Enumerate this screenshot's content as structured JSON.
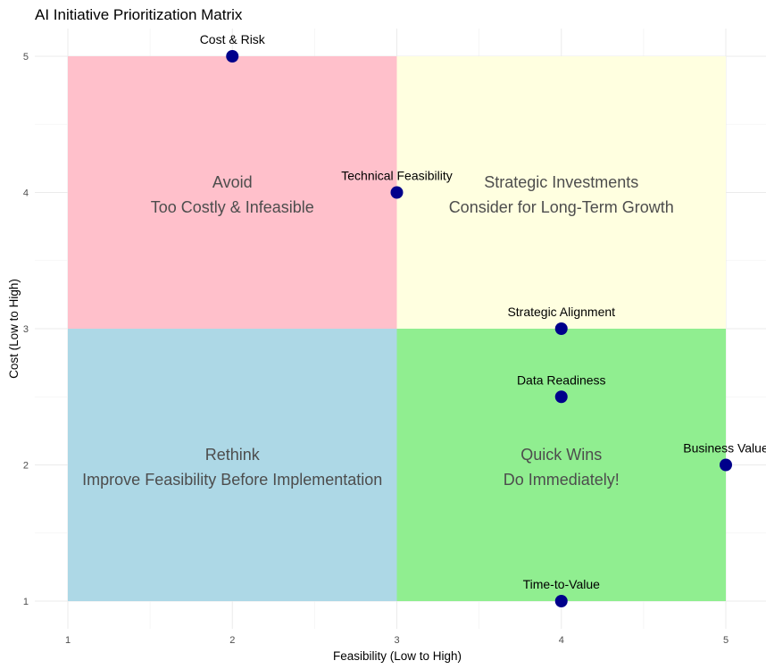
{
  "chart_data": {
    "type": "scatter",
    "title": "AI Initiative Prioritization Matrix",
    "xlabel": "Feasibility (Low to High)",
    "ylabel": "Cost (Low to High)",
    "xlim": [
      1,
      5
    ],
    "ylim": [
      1,
      5
    ],
    "x_ticks": [
      "1",
      "2",
      "3",
      "4",
      "5"
    ],
    "y_ticks": [
      "1",
      "2",
      "3",
      "4",
      "5"
    ],
    "grid": true,
    "point_color": "#00008b",
    "quadrants": [
      {
        "name": "Avoid",
        "line1": "Avoid",
        "line2": "Too Costly & Infeasible",
        "xmin": 1,
        "xmax": 3,
        "ymin": 3,
        "ymax": 5,
        "label_x": 2,
        "label_y": 3.9,
        "color": "#ffc0cb"
      },
      {
        "name": "Strategic Investments",
        "line1": "Strategic Investments",
        "line2": "Consider for Long-Term Growth",
        "xmin": 3,
        "xmax": 5,
        "ymin": 3,
        "ymax": 5,
        "label_x": 4,
        "label_y": 3.9,
        "color": "#ffffe0"
      },
      {
        "name": "Rethink",
        "line1": "Rethink",
        "line2": "Improve Feasibility Before Implementation",
        "xmin": 1,
        "xmax": 3,
        "ymin": 1,
        "ymax": 3,
        "label_x": 2,
        "label_y": 1.9,
        "color": "#add8e6"
      },
      {
        "name": "Quick Wins",
        "line1": "Quick Wins",
        "line2": "Do Immediately!",
        "xmin": 3,
        "xmax": 5,
        "ymin": 1,
        "ymax": 3,
        "label_x": 4,
        "label_y": 1.9,
        "color": "#90ee90"
      }
    ],
    "points": [
      {
        "label": "Cost & Risk",
        "x": 2,
        "y": 5
      },
      {
        "label": "Technical Feasibility",
        "x": 3,
        "y": 4
      },
      {
        "label": "Strategic Alignment",
        "x": 4,
        "y": 3
      },
      {
        "label": "Data Readiness",
        "x": 4,
        "y": 2.5
      },
      {
        "label": "Business Value",
        "x": 5,
        "y": 2
      },
      {
        "label": "Time-to-Value",
        "x": 4,
        "y": 1
      }
    ]
  }
}
